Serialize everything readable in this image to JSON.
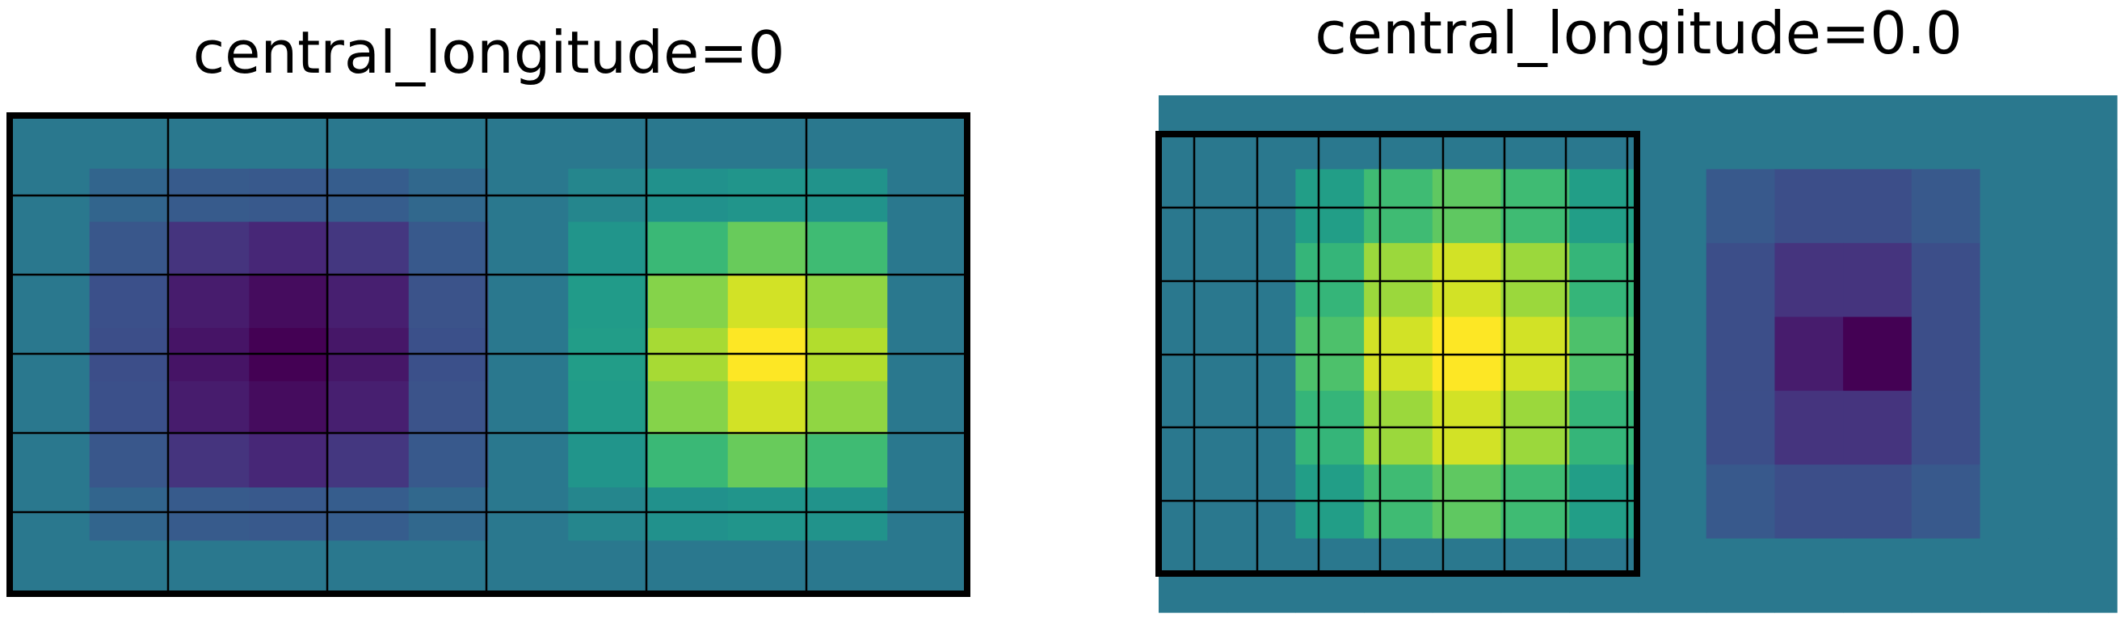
{
  "colors": {
    "background": "#ffffff",
    "frame": "#000000",
    "gridline": "#000000"
  },
  "colormap": "viridis",
  "chart_data": [
    {
      "type": "heatmap",
      "title": "central_longitude=0",
      "projection": "PlateCarree",
      "grid": true,
      "colormap": "viridis",
      "values": [
        [
          0.0,
          0.0,
          0.0,
          0.0,
          0.0,
          0.0,
          0.0,
          0.0,
          0.0,
          0.0,
          0.0,
          0.0
        ],
        [
          0.0,
          -0.18,
          -0.28,
          -0.3,
          -0.26,
          -0.15,
          0.0,
          0.15,
          0.26,
          0.3,
          0.28,
          0.0
        ],
        [
          0.0,
          -0.32,
          -0.62,
          -0.72,
          -0.6,
          -0.3,
          0.0,
          0.3,
          0.6,
          0.72,
          0.62,
          0.0
        ],
        [
          0.0,
          -0.38,
          -0.8,
          -0.92,
          -0.78,
          -0.36,
          0.0,
          0.36,
          0.78,
          0.92,
          0.8,
          0.0
        ],
        [
          0.0,
          -0.4,
          -0.86,
          -1.0,
          -0.84,
          -0.38,
          0.0,
          0.38,
          0.84,
          1.0,
          0.86,
          0.0
        ],
        [
          0.0,
          -0.38,
          -0.8,
          -0.92,
          -0.78,
          -0.36,
          0.0,
          0.36,
          0.78,
          0.92,
          0.8,
          0.0
        ],
        [
          0.0,
          -0.32,
          -0.62,
          -0.72,
          -0.6,
          -0.3,
          0.0,
          0.3,
          0.6,
          0.72,
          0.62,
          0.0
        ],
        [
          0.0,
          -0.18,
          -0.28,
          -0.3,
          -0.26,
          -0.15,
          0.0,
          0.15,
          0.26,
          0.3,
          0.28,
          0.0
        ],
        [
          0.0,
          0.0,
          0.0,
          0.0,
          0.0,
          0.0,
          0.0,
          0.0,
          0.0,
          0.0,
          0.0,
          0.0
        ]
      ]
    },
    {
      "type": "heatmap",
      "title": "central_longitude=0.0",
      "projection": "PlateCarree",
      "grid": true,
      "colormap": "viridis",
      "values": [
        [
          0.0,
          0.0,
          0.0,
          0.0,
          0.0,
          0.0,
          0.0,
          0.0,
          0.0,
          0.0,
          0.0,
          0.0,
          0.0,
          0.0
        ],
        [
          0.0,
          0.0,
          0.4,
          0.62,
          0.7,
          0.62,
          0.4,
          0.0,
          -0.3,
          -0.4,
          -0.4,
          -0.3,
          0.0,
          0.0
        ],
        [
          0.0,
          0.0,
          0.58,
          0.82,
          0.92,
          0.82,
          0.58,
          0.0,
          -0.4,
          -0.62,
          -0.62,
          -0.4,
          0.0,
          0.0
        ],
        [
          0.0,
          0.0,
          0.66,
          0.92,
          1.0,
          0.92,
          0.66,
          0.0,
          -0.4,
          -0.8,
          -1.0,
          -0.4,
          0.0,
          0.0
        ],
        [
          0.0,
          0.0,
          0.58,
          0.82,
          0.92,
          0.82,
          0.58,
          0.0,
          -0.4,
          -0.62,
          -0.62,
          -0.4,
          0.0,
          0.0
        ],
        [
          0.0,
          0.0,
          0.4,
          0.62,
          0.7,
          0.62,
          0.4,
          0.0,
          -0.3,
          -0.4,
          -0.4,
          -0.3,
          0.0,
          0.0
        ],
        [
          0.0,
          0.0,
          0.0,
          0.0,
          0.0,
          0.0,
          0.0,
          0.0,
          0.0,
          0.0,
          0.0,
          0.0,
          0.0,
          0.0
        ]
      ]
    }
  ]
}
